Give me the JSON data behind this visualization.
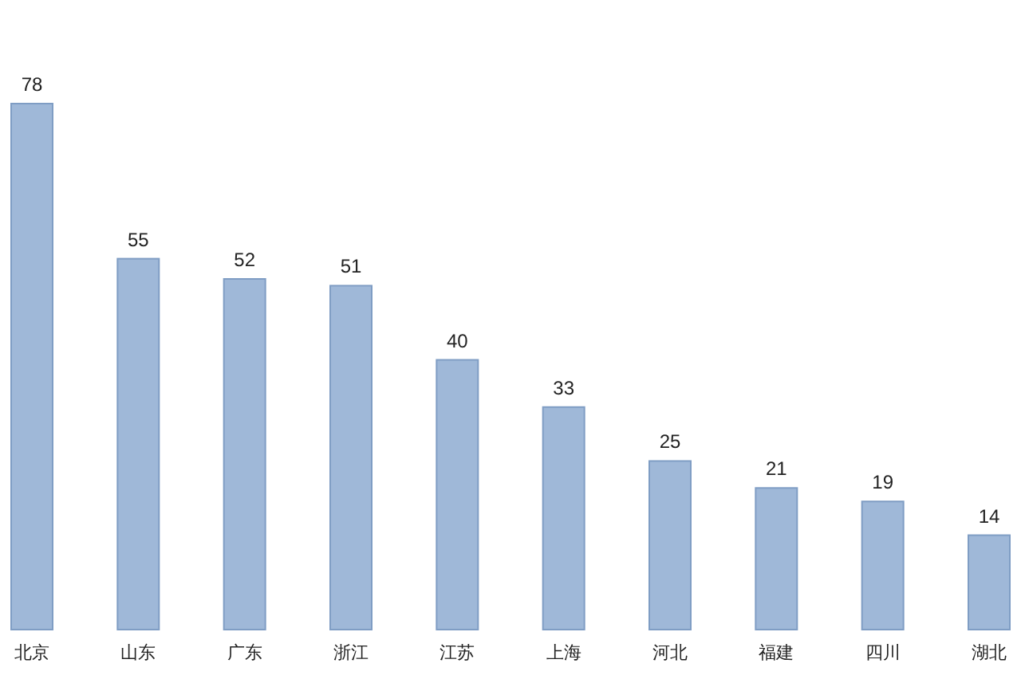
{
  "chart_data": {
    "type": "bar",
    "categories": [
      "北京",
      "山东",
      "广东",
      "浙江",
      "江苏",
      "上海",
      "河北",
      "福建",
      "四川",
      "湖北"
    ],
    "values": [
      78,
      55,
      52,
      51,
      40,
      33,
      25,
      21,
      19,
      14
    ],
    "color": "#9fb8d8",
    "data_labels": true
  }
}
